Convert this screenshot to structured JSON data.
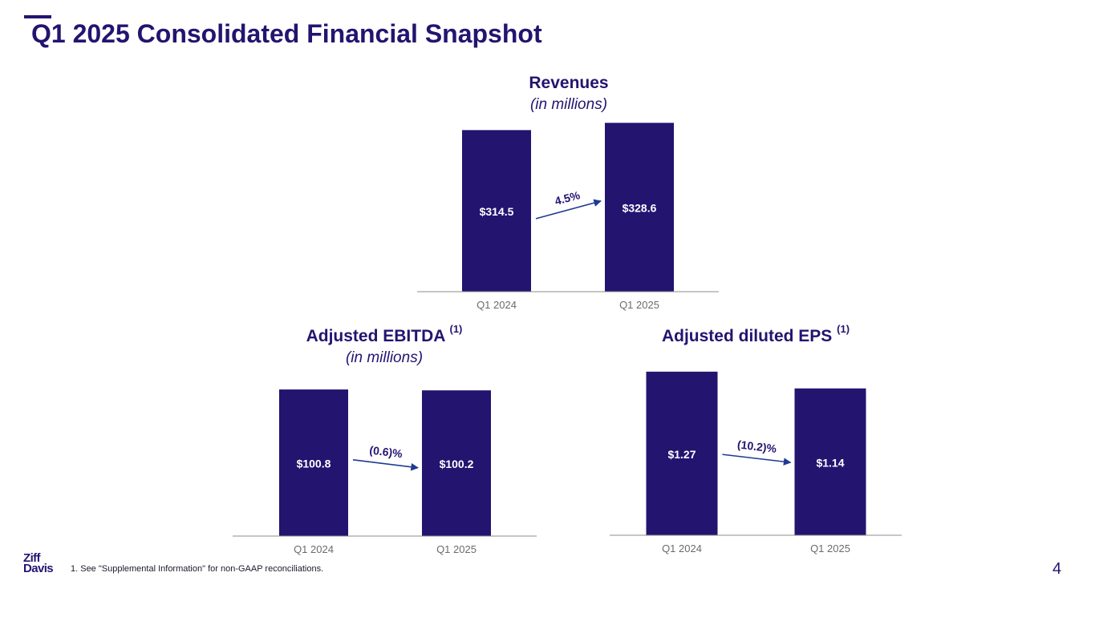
{
  "page": {
    "title": "Q1 2025 Consolidated Financial Snapshot",
    "page_number": "4",
    "footnote": "1.  See \"Supplemental Information\" for non-GAAP reconciliations.",
    "logo_line1": "Ziff",
    "logo_line2": "Davis"
  },
  "colors": {
    "bar": "#231470",
    "axis": "#8c8c8c",
    "arrow": "#1f3a93"
  },
  "chart_data": [
    {
      "type": "bar",
      "title": "Revenues",
      "subtitle": "(in millions)",
      "footnote_marker": "",
      "categories": [
        "Q1 2024",
        "Q1 2025"
      ],
      "values": [
        314.5,
        328.6
      ],
      "value_labels": [
        "$314.5",
        "$328.6"
      ],
      "change_label": "4.5%",
      "ylim": [
        0,
        340
      ]
    },
    {
      "type": "bar",
      "title": "Adjusted EBITDA",
      "subtitle": "(in millions)",
      "footnote_marker": "(1)",
      "categories": [
        "Q1 2024",
        "Q1 2025"
      ],
      "values": [
        100.8,
        100.2
      ],
      "value_labels": [
        "$100.8",
        "$100.2"
      ],
      "change_label": "(0.6)%",
      "ylim": [
        0,
        108
      ]
    },
    {
      "type": "bar",
      "title": "Adjusted diluted EPS",
      "subtitle": "",
      "footnote_marker": "(1)",
      "categories": [
        "Q1 2024",
        "Q1 2025"
      ],
      "values": [
        1.27,
        1.14
      ],
      "value_labels": [
        "$1.27",
        "$1.14"
      ],
      "change_label": "(10.2)%",
      "ylim": [
        0,
        1.3
      ]
    }
  ]
}
